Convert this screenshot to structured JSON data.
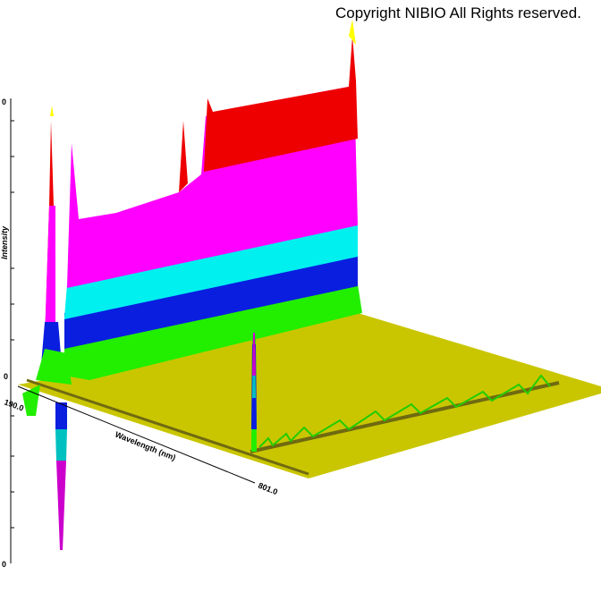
{
  "header": {
    "copyright": "Copyright NIBIO All Rights reserved."
  },
  "axes": {
    "y_label": "Intensity",
    "x_label": "Wavelength (nm)",
    "x_start": "190.0",
    "x_end": "801.0",
    "y_tick_labels": [
      "0",
      "0",
      "0"
    ]
  }
}
